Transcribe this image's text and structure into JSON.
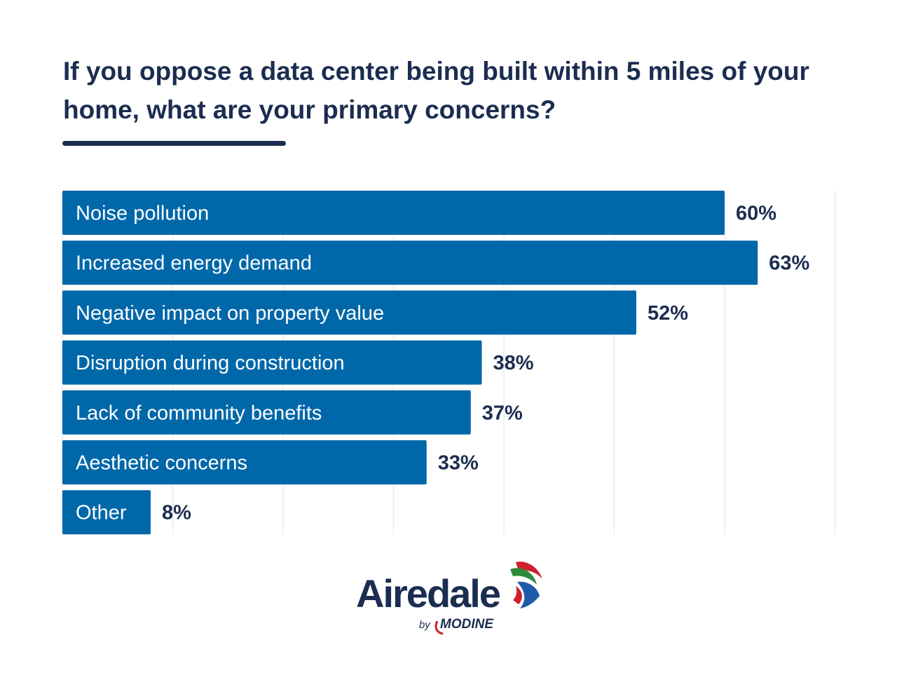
{
  "chart_data": {
    "type": "bar",
    "orientation": "horizontal",
    "title": "If you oppose a data center being built within 5 miles of your home, what are your primary concerns?",
    "categories": [
      "Noise pollution",
      "Increased energy demand",
      "Negative impact on property value",
      "Disruption during construction",
      "Lack of community benefits",
      "Aesthetic concerns",
      "Other"
    ],
    "values": [
      60,
      63,
      52,
      38,
      37,
      33,
      8
    ],
    "value_labels": [
      "60%",
      "63%",
      "52%",
      "38%",
      "37%",
      "33%",
      "8%"
    ],
    "xlim": [
      0,
      70
    ],
    "grid": true,
    "bar_color": "#0067a9"
  },
  "brand": {
    "name": "Airedale",
    "by": "by",
    "parent": "MODINE"
  },
  "colors": {
    "title": "#1b2d50",
    "bar": "#0067a9",
    "grid": "#ececec",
    "logo_red": "#d0202e",
    "logo_green": "#2e8b3d",
    "logo_blue": "#1f5aa8"
  }
}
